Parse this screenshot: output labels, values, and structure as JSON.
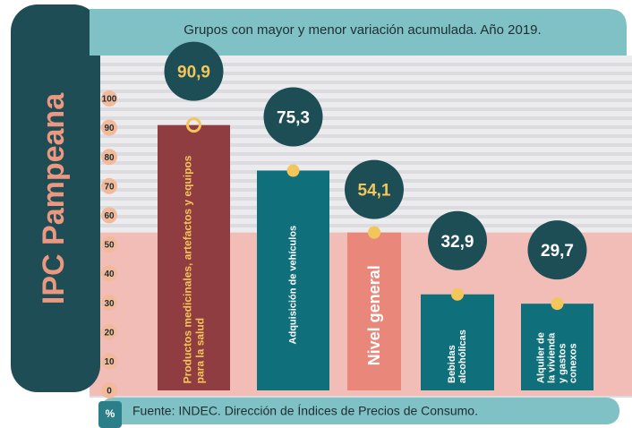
{
  "header": "IPC Pampeana",
  "source": "Fuente: INDEC. Dirección de Índices de Precios de Consumo.",
  "chart_data": {
    "type": "bar",
    "title": "Grupos con mayor y menor variación acumulada. Año 2019.",
    "y_axis_label": "%",
    "categories": [
      "Productos medicinales, artefactos y equipos para la salud",
      "Adquisición de vehículos",
      "Nivel general",
      "Bebidas alcohólicas",
      "Alquiler de la vivienda y gastos conexos"
    ],
    "values": [
      90.9,
      75.3,
      54.1,
      32.9,
      29.7
    ],
    "value_labels": [
      "90,9",
      "75,3",
      "54,1",
      "32,9",
      "29,7"
    ],
    "colors": [
      "#8f3d40",
      "#0f6f7b",
      "#e9877b",
      "#0f6f7b",
      "#0f6f7b"
    ],
    "ylim": [
      0,
      100
    ],
    "yticks": [
      0,
      10,
      20,
      30,
      40,
      50,
      60,
      70,
      80,
      90,
      100
    ]
  }
}
